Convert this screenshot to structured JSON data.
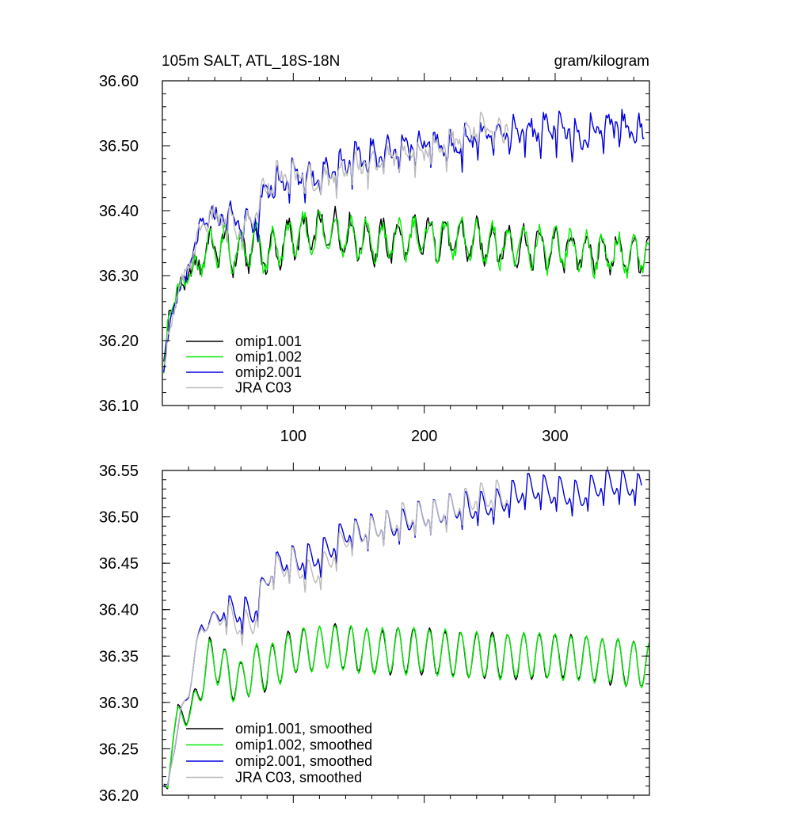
{
  "chart_data": [
    {
      "type": "line",
      "title": "105m SALT, ATL_18S-18N",
      "units": "gram/kilogram",
      "xlim": [
        0,
        372
      ],
      "ylim": [
        36.1,
        36.6
      ],
      "x_ticks": [
        100,
        200,
        300
      ],
      "x_tick_labels": [
        "100",
        "200",
        "300"
      ],
      "y_ticks": [
        36.1,
        36.2,
        36.3,
        36.4,
        36.5,
        36.6
      ],
      "y_tick_labels": [
        "36.10",
        "36.20",
        "36.30",
        "36.40",
        "36.50",
        "36.60"
      ],
      "legend_position": "bottom-left",
      "series": [
        {
          "name": "omip1.001",
          "color": "#000000",
          "kind": "low",
          "smoothed": false,
          "x_end": 372,
          "anchors": [
            [
              1,
              36.16
            ],
            [
              5,
              36.24
            ],
            [
              10,
              36.26
            ],
            [
              15,
              36.29
            ],
            [
              20,
              36.3
            ],
            [
              25,
              36.31
            ],
            [
              30,
              36.33
            ],
            [
              40,
              36.35
            ],
            [
              50,
              36.34
            ],
            [
              60,
              36.33
            ],
            [
              70,
              36.35
            ],
            [
              80,
              36.33
            ],
            [
              100,
              36.36
            ],
            [
              130,
              36.37
            ],
            [
              160,
              36.35
            ],
            [
              200,
              36.36
            ],
            [
              250,
              36.35
            ],
            [
              300,
              36.34
            ],
            [
              372,
              36.33
            ]
          ]
        },
        {
          "name": "omip1.002",
          "color": "#00ee00",
          "kind": "low",
          "smoothed": false,
          "x_end": 372,
          "anchors": [
            [
              1,
              36.16
            ],
            [
              5,
              36.24
            ],
            [
              10,
              36.26
            ],
            [
              15,
              36.29
            ],
            [
              20,
              36.3
            ],
            [
              25,
              36.31
            ],
            [
              30,
              36.33
            ],
            [
              40,
              36.35
            ],
            [
              50,
              36.34
            ],
            [
              60,
              36.33
            ],
            [
              70,
              36.35
            ],
            [
              80,
              36.33
            ],
            [
              100,
              36.36
            ],
            [
              130,
              36.37
            ],
            [
              160,
              36.35
            ],
            [
              200,
              36.36
            ],
            [
              250,
              36.35
            ],
            [
              300,
              36.34
            ],
            [
              372,
              36.33
            ]
          ]
        },
        {
          "name": "omip2.001",
          "color": "#0000dd",
          "kind": "high",
          "smoothed": false,
          "x_end": 368,
          "anchors": [
            [
              1,
              36.16
            ],
            [
              5,
              36.22
            ],
            [
              10,
              36.25
            ],
            [
              15,
              36.29
            ],
            [
              20,
              36.31
            ],
            [
              25,
              36.34
            ],
            [
              30,
              36.38
            ],
            [
              40,
              36.39
            ],
            [
              50,
              36.4
            ],
            [
              60,
              36.39
            ],
            [
              70,
              36.38
            ],
            [
              80,
              36.44
            ],
            [
              100,
              36.46
            ],
            [
              120,
              36.46
            ],
            [
              140,
              36.48
            ],
            [
              160,
              36.49
            ],
            [
              180,
              36.5
            ],
            [
              200,
              36.51
            ],
            [
              220,
              36.5
            ],
            [
              240,
              36.52
            ],
            [
              260,
              36.52
            ],
            [
              280,
              36.53
            ],
            [
              300,
              36.53
            ],
            [
              320,
              36.52
            ],
            [
              340,
              36.54
            ],
            [
              368,
              36.53
            ]
          ]
        },
        {
          "name": "JRA C03",
          "color": "#bbbbbb",
          "kind": "high",
          "smoothed": false,
          "x_end": 264,
          "anchors": [
            [
              1,
              36.16
            ],
            [
              5,
              36.22
            ],
            [
              10,
              36.25
            ],
            [
              15,
              36.29
            ],
            [
              20,
              36.31
            ],
            [
              25,
              36.34
            ],
            [
              30,
              36.38
            ],
            [
              40,
              36.39
            ],
            [
              50,
              36.39
            ],
            [
              60,
              36.37
            ],
            [
              70,
              36.4
            ],
            [
              80,
              36.45
            ],
            [
              100,
              36.46
            ],
            [
              120,
              36.45
            ],
            [
              140,
              36.47
            ],
            [
              160,
              36.48
            ],
            [
              180,
              36.49
            ],
            [
              200,
              36.5
            ],
            [
              220,
              36.51
            ],
            [
              240,
              36.53
            ],
            [
              264,
              36.53
            ]
          ]
        }
      ]
    },
    {
      "type": "line",
      "title": "",
      "xlim": [
        0,
        372
      ],
      "ylim": [
        36.2,
        36.55
      ],
      "x_ticks": [
        100,
        200,
        300
      ],
      "x_tick_labels": [],
      "y_ticks": [
        36.2,
        36.25,
        36.3,
        36.35,
        36.4,
        36.45,
        36.5,
        36.55
      ],
      "y_tick_labels": [
        "36.20",
        "36.25",
        "36.30",
        "36.35",
        "36.40",
        "36.45",
        "36.50",
        "36.55"
      ],
      "legend_position": "bottom-left",
      "series": [
        {
          "name": "omip1.001, smoothed",
          "color": "#000000",
          "kind": "low",
          "smoothed": true,
          "x_end": 372,
          "anchors": [
            [
              4,
              36.21
            ],
            [
              8,
              36.26
            ],
            [
              12,
              36.29
            ],
            [
              18,
              36.285
            ],
            [
              22,
              36.29
            ],
            [
              30,
              36.32
            ],
            [
              36,
              36.35
            ],
            [
              44,
              36.34
            ],
            [
              50,
              36.33
            ],
            [
              60,
              36.32
            ],
            [
              70,
              36.34
            ],
            [
              80,
              36.335
            ],
            [
              100,
              36.355
            ],
            [
              130,
              36.36
            ],
            [
              160,
              36.355
            ],
            [
              200,
              36.355
            ],
            [
              250,
              36.35
            ],
            [
              300,
              36.35
            ],
            [
              372,
              36.34
            ]
          ]
        },
        {
          "name": "omip1.002, smoothed",
          "color": "#00ee00",
          "kind": "low",
          "smoothed": true,
          "x_end": 372,
          "anchors": [
            [
              4,
              36.21
            ],
            [
              8,
              36.26
            ],
            [
              12,
              36.29
            ],
            [
              18,
              36.285
            ],
            [
              22,
              36.29
            ],
            [
              30,
              36.32
            ],
            [
              36,
              36.35
            ],
            [
              44,
              36.34
            ],
            [
              50,
              36.33
            ],
            [
              60,
              36.32
            ],
            [
              70,
              36.34
            ],
            [
              80,
              36.335
            ],
            [
              100,
              36.355
            ],
            [
              130,
              36.36
            ],
            [
              160,
              36.355
            ],
            [
              200,
              36.355
            ],
            [
              250,
              36.35
            ],
            [
              300,
              36.35
            ],
            [
              372,
              36.34
            ]
          ]
        },
        {
          "name": "omip2.001, smoothed",
          "color": "#0000dd",
          "kind": "high",
          "smoothed": true,
          "x_end": 366,
          "anchors": [
            [
              4,
              36.21
            ],
            [
              8,
              36.24
            ],
            [
              14,
              36.29
            ],
            [
              20,
              36.31
            ],
            [
              26,
              36.36
            ],
            [
              30,
              36.385
            ],
            [
              40,
              36.39
            ],
            [
              50,
              36.405
            ],
            [
              60,
              36.4
            ],
            [
              70,
              36.4
            ],
            [
              80,
              36.44
            ],
            [
              90,
              36.455
            ],
            [
              100,
              36.455
            ],
            [
              110,
              36.46
            ],
            [
              120,
              36.46
            ],
            [
              140,
              36.485
            ],
            [
              160,
              36.49
            ],
            [
              180,
              36.495
            ],
            [
              200,
              36.505
            ],
            [
              220,
              36.51
            ],
            [
              240,
              36.515
            ],
            [
              260,
              36.52
            ],
            [
              280,
              36.535
            ],
            [
              300,
              36.53
            ],
            [
              320,
              36.525
            ],
            [
              340,
              36.54
            ],
            [
              366,
              36.535
            ]
          ]
        },
        {
          "name": "JRA C03, smoothed",
          "color": "#bbbbbb",
          "kind": "high",
          "smoothed": true,
          "x_end": 264,
          "anchors": [
            [
              4,
              36.21
            ],
            [
              8,
              36.24
            ],
            [
              14,
              36.29
            ],
            [
              20,
              36.31
            ],
            [
              26,
              36.36
            ],
            [
              30,
              36.38
            ],
            [
              40,
              36.39
            ],
            [
              50,
              36.4
            ],
            [
              60,
              36.385
            ],
            [
              70,
              36.39
            ],
            [
              80,
              36.44
            ],
            [
              90,
              36.45
            ],
            [
              100,
              36.455
            ],
            [
              110,
              36.44
            ],
            [
              120,
              36.445
            ],
            [
              140,
              36.48
            ],
            [
              160,
              36.49
            ],
            [
              180,
              36.5
            ],
            [
              200,
              36.505
            ],
            [
              220,
              36.51
            ],
            [
              240,
              36.525
            ],
            [
              264,
              36.525
            ]
          ]
        }
      ]
    }
  ]
}
